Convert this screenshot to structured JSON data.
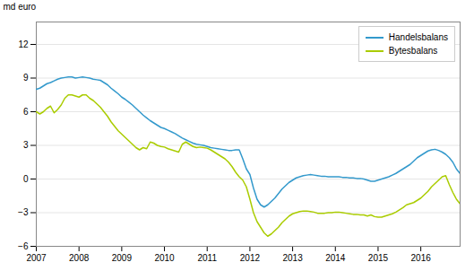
{
  "chart_data": {
    "type": "line",
    "ylabel": "md euro",
    "x": [
      2007.0,
      2007.083,
      2007.167,
      2007.25,
      2007.333,
      2007.417,
      2007.5,
      2007.583,
      2007.667,
      2007.75,
      2007.833,
      2007.917,
      2008.0,
      2008.083,
      2008.167,
      2008.25,
      2008.333,
      2008.417,
      2008.5,
      2008.583,
      2008.667,
      2008.75,
      2008.833,
      2008.917,
      2009.0,
      2009.083,
      2009.167,
      2009.25,
      2009.333,
      2009.417,
      2009.5,
      2009.583,
      2009.667,
      2009.75,
      2009.833,
      2009.917,
      2010.0,
      2010.083,
      2010.167,
      2010.25,
      2010.333,
      2010.417,
      2010.5,
      2010.583,
      2010.667,
      2010.75,
      2010.833,
      2010.917,
      2011.0,
      2011.083,
      2011.167,
      2011.25,
      2011.333,
      2011.417,
      2011.5,
      2011.583,
      2011.667,
      2011.75,
      2011.833,
      2011.917,
      2012.0,
      2012.083,
      2012.167,
      2012.25,
      2012.333,
      2012.417,
      2012.5,
      2012.583,
      2012.667,
      2012.75,
      2012.833,
      2012.917,
      2013.0,
      2013.083,
      2013.167,
      2013.25,
      2013.333,
      2013.417,
      2013.5,
      2013.583,
      2013.667,
      2013.75,
      2013.833,
      2013.917,
      2014.0,
      2014.083,
      2014.167,
      2014.25,
      2014.333,
      2014.417,
      2014.5,
      2014.583,
      2014.667,
      2014.75,
      2014.833,
      2014.917,
      2015.0,
      2015.083,
      2015.167,
      2015.25,
      2015.333,
      2015.417,
      2015.5,
      2015.583,
      2015.667,
      2015.75,
      2015.833,
      2015.917,
      2016.0,
      2016.083,
      2016.167,
      2016.25,
      2016.333,
      2016.417,
      2016.5,
      2016.583,
      2016.667,
      2016.75,
      2016.833,
      2016.917
    ],
    "series": [
      {
        "name": "Handelsbalans",
        "color": "#3399cc",
        "values": [
          8.0,
          8.1,
          8.3,
          8.5,
          8.6,
          8.75,
          8.9,
          9.0,
          9.05,
          9.1,
          9.1,
          9.0,
          9.05,
          9.1,
          9.05,
          9.0,
          8.9,
          8.85,
          8.8,
          8.6,
          8.4,
          8.1,
          7.85,
          7.6,
          7.3,
          7.1,
          6.85,
          6.6,
          6.3,
          6.0,
          5.7,
          5.45,
          5.2,
          5.0,
          4.8,
          4.6,
          4.5,
          4.35,
          4.2,
          4.05,
          3.85,
          3.65,
          3.5,
          3.35,
          3.2,
          3.1,
          3.05,
          3.0,
          2.9,
          2.8,
          2.75,
          2.7,
          2.65,
          2.6,
          2.55,
          2.55,
          2.6,
          2.6,
          1.8,
          0.9,
          0.4,
          -0.8,
          -1.8,
          -2.3,
          -2.5,
          -2.3,
          -2.0,
          -1.7,
          -1.3,
          -0.9,
          -0.6,
          -0.3,
          -0.1,
          0.1,
          0.2,
          0.3,
          0.35,
          0.4,
          0.35,
          0.3,
          0.25,
          0.25,
          0.2,
          0.2,
          0.2,
          0.2,
          0.15,
          0.15,
          0.1,
          0.1,
          0.05,
          0.05,
          0.0,
          -0.1,
          -0.2,
          -0.2,
          -0.1,
          0.0,
          0.1,
          0.2,
          0.35,
          0.5,
          0.7,
          0.9,
          1.1,
          1.3,
          1.6,
          1.9,
          2.1,
          2.3,
          2.5,
          2.6,
          2.65,
          2.55,
          2.4,
          2.2,
          1.9,
          1.5,
          0.9,
          0.5
        ]
      },
      {
        "name": "Bytesbalans",
        "color": "#aacc00",
        "values": [
          6.0,
          5.8,
          6.0,
          6.3,
          6.5,
          5.9,
          6.2,
          6.6,
          7.2,
          7.5,
          7.5,
          7.4,
          7.3,
          7.5,
          7.5,
          7.2,
          7.0,
          6.7,
          6.4,
          6.0,
          5.6,
          5.1,
          4.7,
          4.3,
          4.0,
          3.7,
          3.4,
          3.1,
          2.8,
          2.6,
          2.8,
          2.7,
          3.3,
          3.2,
          3.0,
          2.9,
          2.85,
          2.7,
          2.6,
          2.5,
          2.4,
          3.1,
          3.3,
          3.1,
          2.9,
          2.8,
          2.85,
          2.8,
          2.75,
          2.6,
          2.4,
          2.2,
          2.0,
          1.8,
          1.5,
          1.1,
          0.6,
          0.2,
          -0.1,
          -0.7,
          -1.8,
          -3.0,
          -3.8,
          -4.3,
          -4.8,
          -5.1,
          -4.9,
          -4.6,
          -4.3,
          -3.9,
          -3.6,
          -3.3,
          -3.1,
          -3.0,
          -2.9,
          -2.85,
          -2.85,
          -2.9,
          -2.95,
          -3.05,
          -3.05,
          -3.05,
          -3.0,
          -3.0,
          -2.95,
          -2.95,
          -3.0,
          -3.05,
          -3.1,
          -3.15,
          -3.15,
          -3.2,
          -3.2,
          -3.3,
          -3.2,
          -3.35,
          -3.4,
          -3.4,
          -3.3,
          -3.2,
          -3.1,
          -2.95,
          -2.75,
          -2.55,
          -2.3,
          -2.2,
          -2.1,
          -1.9,
          -1.7,
          -1.4,
          -1.1,
          -0.7,
          -0.4,
          -0.1,
          0.2,
          0.3,
          -0.5,
          -1.2,
          -1.8,
          -2.2
        ]
      }
    ],
    "xlim": [
      2007.0,
      2016.92
    ],
    "xticks": [
      2007,
      2008,
      2009,
      2010,
      2011,
      2012,
      2013,
      2014,
      2015,
      2016
    ],
    "ylim": [
      -6,
      14
    ],
    "yticks": [
      -6,
      -3,
      0,
      3,
      6,
      9,
      12
    ],
    "grid": true,
    "legend": "upper right"
  }
}
